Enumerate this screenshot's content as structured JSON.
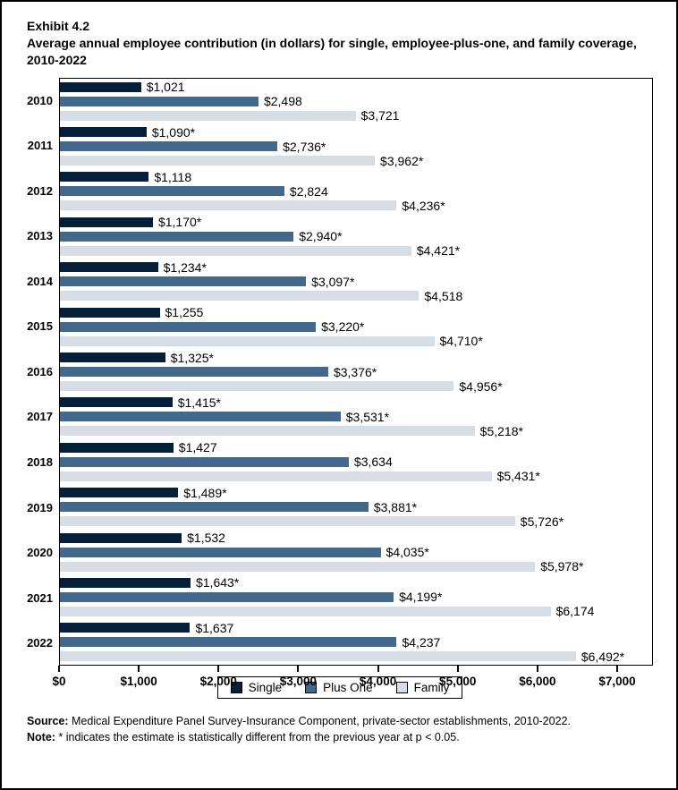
{
  "title": {
    "exhibit": "Exhibit 4.2",
    "text": "Average annual employee contribution (in dollars) for single, employee-plus-one, and family coverage, 2010-2022"
  },
  "chart_data": {
    "type": "bar",
    "orientation": "horizontal",
    "title": "Average annual employee contribution (in dollars) for single, employee-plus-one, and family coverage, 2010-2022",
    "categories": [
      "2010",
      "2011",
      "2012",
      "2013",
      "2014",
      "2015",
      "2016",
      "2017",
      "2018",
      "2019",
      "2020",
      "2021",
      "2022"
    ],
    "series": [
      {
        "name": "Single",
        "color": "#051f38",
        "values": [
          1021,
          1090,
          1118,
          1170,
          1234,
          1255,
          1325,
          1415,
          1427,
          1489,
          1532,
          1643,
          1637
        ],
        "labels": [
          "$1,021",
          "$1,090*",
          "$1,118",
          "$1,170*",
          "$1,234*",
          "$1,255",
          "$1,325*",
          "$1,415*",
          "$1,427",
          "$1,489*",
          "$1,532",
          "$1,643*",
          "$1,637"
        ]
      },
      {
        "name": "Plus One",
        "color": "#42688c",
        "values": [
          2498,
          2736,
          2824,
          2940,
          3097,
          3220,
          3376,
          3531,
          3634,
          3881,
          4035,
          4199,
          4237
        ],
        "labels": [
          "$2,498",
          "$2,736*",
          "$2,824",
          "$2,940*",
          "$3,097*",
          "$3,220*",
          "$3,376*",
          "$3,531*",
          "$3,634",
          "$3,881*",
          "$4,035*",
          "$4,199*",
          "$4,237"
        ]
      },
      {
        "name": "Family",
        "color": "#d6dde5",
        "values": [
          3721,
          3962,
          4236,
          4421,
          4518,
          4710,
          4956,
          5218,
          5431,
          5726,
          5978,
          6174,
          6492
        ],
        "labels": [
          "$3,721",
          "$3,962*",
          "$4,236*",
          "$4,421*",
          "$4,518",
          "$4,710*",
          "$4,956*",
          "$5,218*",
          "$5,431*",
          "$5,726*",
          "$5,978*",
          "$6,174",
          "$6,492*"
        ]
      }
    ],
    "xlim": [
      0,
      7000
    ],
    "x_ticks": [
      0,
      1000,
      2000,
      3000,
      4000,
      5000,
      6000,
      7000
    ],
    "x_tick_labels": [
      "$0",
      "$1,000",
      "$2,000",
      "$3,000",
      "$4,000",
      "$5,000",
      "$6,000",
      "$7,000"
    ],
    "grid": false,
    "legend_position": "bottom"
  },
  "footnotes": {
    "source_label": "Source:",
    "source_text": " Medical Expenditure Panel Survey-Insurance Component, private-sector establishments, 2010-2022.",
    "note_label": "Note:",
    "note_text": " * indicates the estimate is statistically different from the previous year at p < 0.05."
  }
}
